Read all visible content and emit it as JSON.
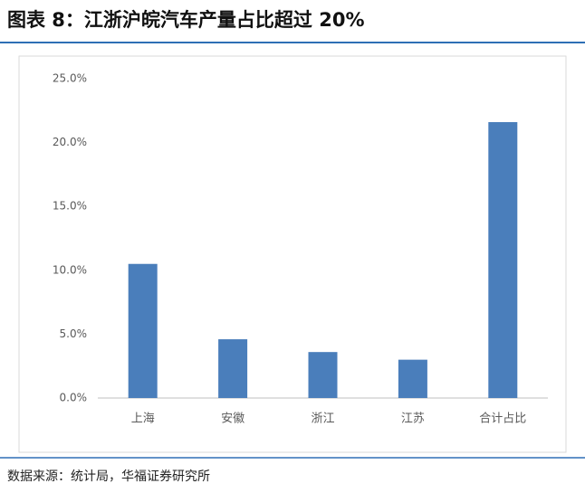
{
  "chart_data": {
    "type": "bar",
    "title": "图表 8：江浙沪皖汽车产量占比超过 20%",
    "source": "数据来源：统计局，华福证券研究所",
    "categories": [
      "上海",
      "安徽",
      "浙江",
      "江苏",
      "合计占比"
    ],
    "values": [
      10.5,
      4.6,
      3.6,
      3.0,
      21.6
    ],
    "color": "#4a7ebb",
    "ylim": [
      0,
      25
    ],
    "yticks": [
      {
        "value": 0,
        "label": "0.0%"
      },
      {
        "value": 5,
        "label": "5.0%"
      },
      {
        "value": 10,
        "label": "10.0%"
      },
      {
        "value": 15,
        "label": "15.0%"
      },
      {
        "value": 20,
        "label": "20.0%"
      },
      {
        "value": 25,
        "label": "25.0%"
      }
    ],
    "grid": false
  }
}
